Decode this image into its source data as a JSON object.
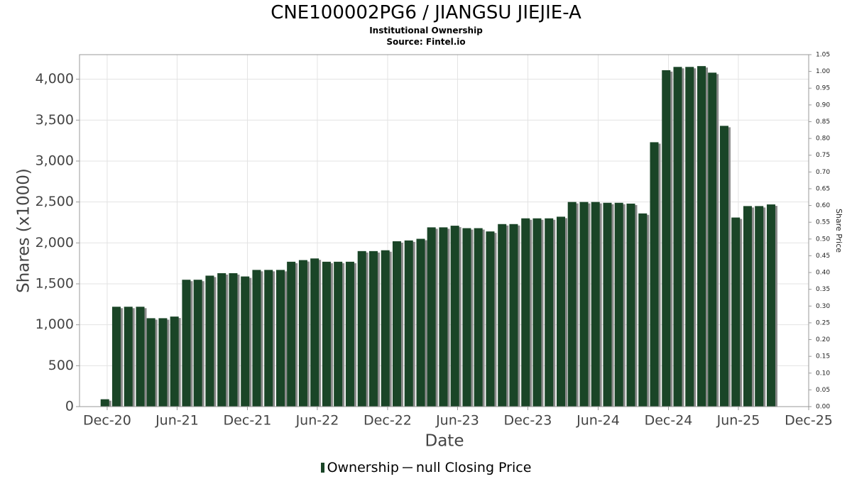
{
  "header": {
    "title": "CNE100002PG6 / JIANGSU JIEJIE-A",
    "subtitle": "Institutional Ownership",
    "source": "Source: Fintel.io"
  },
  "legend": {
    "ownership": "Ownership",
    "price": "null Closing Price"
  },
  "colors": {
    "bar": "#1a4527",
    "bar_shadow": "#8a8a8a",
    "grid": "#e3e3e3",
    "axis": "#999999"
  },
  "chart_data": {
    "type": "bar",
    "title": "CNE100002PG6 / JIANGSU JIEJIE-A",
    "subtitle": "Institutional Ownership",
    "xlabel": "Date",
    "ylabel": "Shares (x1000)",
    "y2label": "Share Price",
    "ylim": [
      0,
      4300
    ],
    "y2lim": [
      0,
      1.05
    ],
    "yticks": [
      0,
      500,
      1000,
      1500,
      2000,
      2500,
      3000,
      3500,
      4000
    ],
    "yticklabels": [
      "0",
      "500",
      "1,000",
      "1,500",
      "2,000",
      "2,500",
      "3,000",
      "3,500",
      "4,000"
    ],
    "y2ticks": [
      "0.00",
      "0.05",
      "0.10",
      "0.15",
      "0.20",
      "0.25",
      "0.30",
      "0.35",
      "0.40",
      "0.45",
      "0.50",
      "0.55",
      "0.60",
      "0.65",
      "0.70",
      "0.75",
      "0.80",
      "0.85",
      "0.90",
      "0.95",
      "1.00",
      "1.05"
    ],
    "xlim": [
      "2020-09-20",
      "2025-12-01"
    ],
    "xticks": [
      "2020-12-01",
      "2021-06-01",
      "2021-12-01",
      "2022-06-01",
      "2022-12-01",
      "2023-06-01",
      "2023-12-01",
      "2024-06-01",
      "2024-12-01",
      "2025-06-01",
      "2025-12-01"
    ],
    "xticklabels": [
      "Dec-20",
      "Jun-21",
      "Dec-21",
      "Jun-22",
      "Dec-22",
      "Jun-23",
      "Dec-23",
      "Jun-24",
      "Dec-24",
      "Jun-25",
      "Dec-25"
    ],
    "grid": true,
    "legend_position": "bottom",
    "series": [
      {
        "name": "Ownership",
        "x": [
          "2020-11-25",
          "2020-12-25",
          "2021-01-25",
          "2021-02-25",
          "2021-03-25",
          "2021-04-25",
          "2021-05-25",
          "2021-06-25",
          "2021-07-25",
          "2021-08-25",
          "2021-09-25",
          "2021-10-25",
          "2021-11-25",
          "2021-12-25",
          "2022-01-25",
          "2022-02-25",
          "2022-03-25",
          "2022-04-25",
          "2022-05-25",
          "2022-06-25",
          "2022-07-25",
          "2022-08-25",
          "2022-09-25",
          "2022-10-25",
          "2022-11-25",
          "2022-12-25",
          "2023-01-25",
          "2023-02-25",
          "2023-03-25",
          "2023-04-25",
          "2023-05-25",
          "2023-06-25",
          "2023-07-25",
          "2023-08-25",
          "2023-09-25",
          "2023-10-25",
          "2023-11-25",
          "2023-12-25",
          "2024-01-25",
          "2024-02-25",
          "2024-03-25",
          "2024-04-25",
          "2024-05-25",
          "2024-06-25",
          "2024-07-25",
          "2024-08-25",
          "2024-09-25",
          "2024-10-25",
          "2024-11-25",
          "2024-12-25",
          "2025-01-25",
          "2025-02-25",
          "2025-03-25",
          "2025-04-25",
          "2025-05-25",
          "2025-06-25",
          "2025-07-25",
          "2025-08-25"
        ],
        "values": [
          90,
          1220,
          1220,
          1220,
          1080,
          1080,
          1100,
          1550,
          1550,
          1600,
          1630,
          1630,
          1590,
          1670,
          1670,
          1670,
          1770,
          1790,
          1810,
          1770,
          1770,
          1770,
          1900,
          1900,
          1910,
          2020,
          2030,
          2050,
          2190,
          2190,
          2210,
          2180,
          2180,
          2140,
          2230,
          2230,
          2300,
          2300,
          2300,
          2320,
          2500,
          2500,
          2500,
          2490,
          2490,
          2480,
          2360,
          3230,
          4110,
          4150,
          4150,
          4160,
          4080,
          3430,
          2310,
          2450,
          2450,
          2470
        ]
      }
    ]
  }
}
